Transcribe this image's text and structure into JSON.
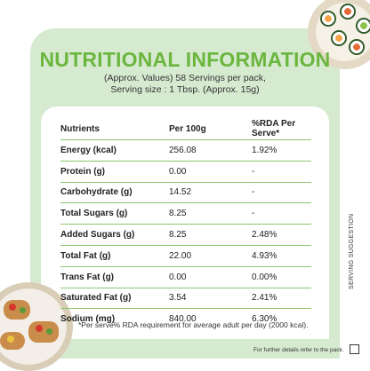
{
  "header": {
    "title": "NUTRITIONAL INFORMATION",
    "subtitle_line1": "(Approx. Values) 58 Servings per pack,",
    "subtitle_line2": "Serving size : 1 Tbsp. (Approx. 15g)"
  },
  "table": {
    "columns": [
      "Nutrients",
      "Per 100g",
      "%RDA Per Serve*"
    ],
    "rows": [
      {
        "label": "Energy (kcal)",
        "per100": "256.08",
        "rda": "1.92%"
      },
      {
        "label": "Protein (g)",
        "per100": "0.00",
        "rda": "-"
      },
      {
        "label": "Carbohydrate (g)",
        "per100": "14.52",
        "rda": "-"
      },
      {
        "label": "Total Sugars (g)",
        "per100": "8.25",
        "rda": "-"
      },
      {
        "label": "Added Sugars (g)",
        "per100": "8.25",
        "rda": "2.48%"
      },
      {
        "label": "Total Fat (g)",
        "per100": "22.00",
        "rda": "4.93%"
      },
      {
        "label": "Trans Fat (g)",
        "per100": "0.00",
        "rda": "0.00%"
      },
      {
        "label": "Saturated Fat (g)",
        "per100": "3.54",
        "rda": "2.41%"
      },
      {
        "label": "Sodium (mg)",
        "per100": "840.00",
        "rda": "6.30%"
      }
    ]
  },
  "footnote": "*Per serve% RDA requirement for average adult per day (2000 kcal).",
  "further_details": "For further details refer to the pack.",
  "serving_suggestion": "SERVING SUGGESTION",
  "colors": {
    "accent": "#6bb63f",
    "panel": "#d6ead0",
    "rule": "#8cc66d"
  }
}
